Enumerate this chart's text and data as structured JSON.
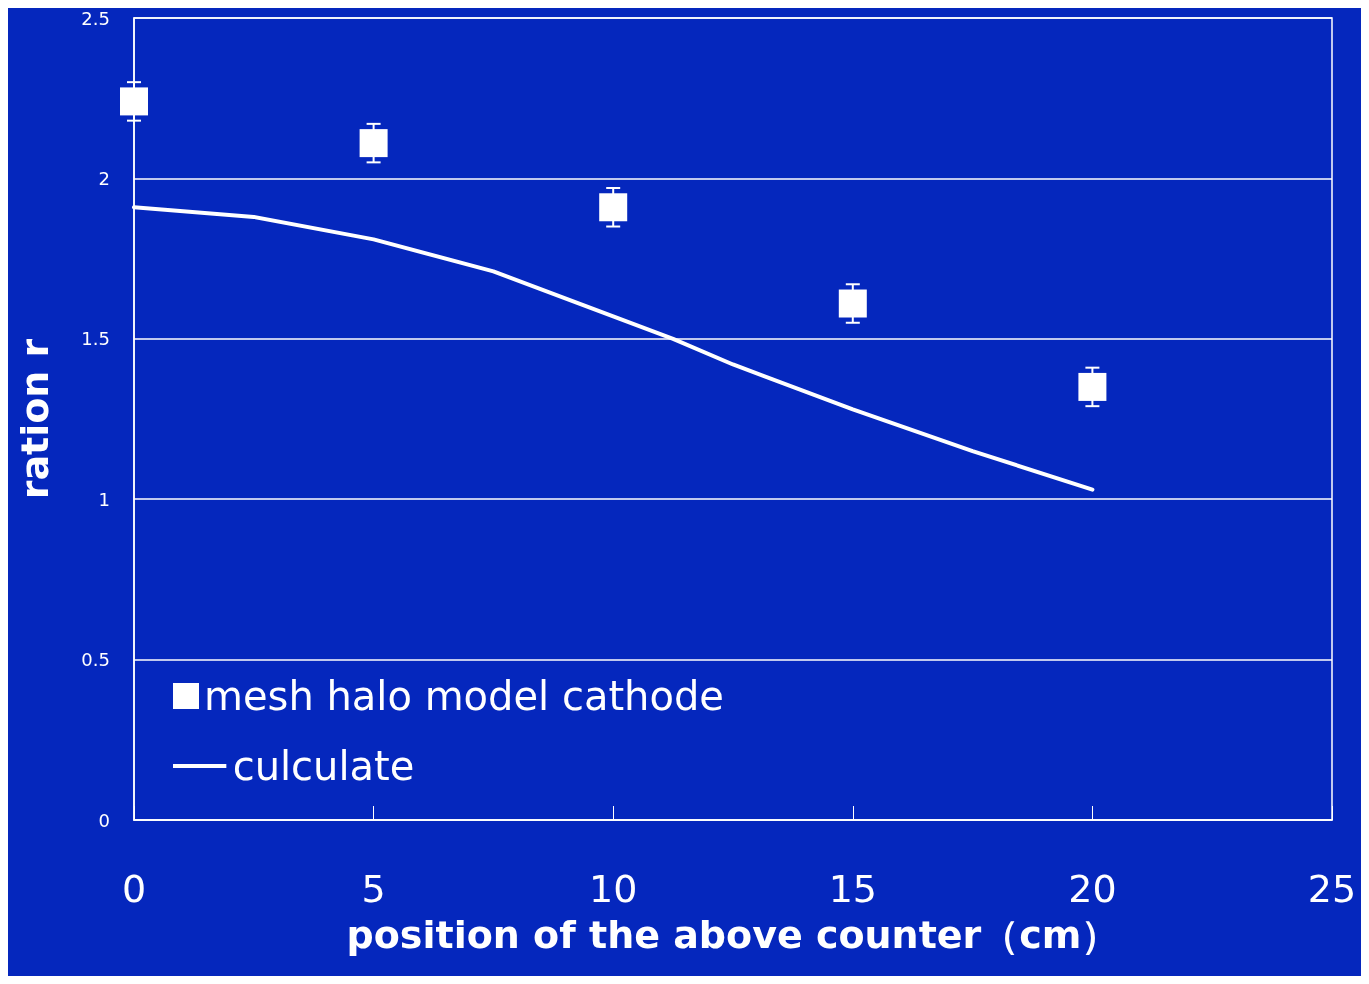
{
  "chart_data": {
    "type": "scatter",
    "xlabel": "position of the above counter（cm）",
    "ylabel": "ration r",
    "xlim": [
      0,
      25
    ],
    "xticks": [
      0,
      5,
      10,
      15,
      20,
      25
    ],
    "ylim": [
      0,
      2.5
    ],
    "yticks": [
      0,
      0.5,
      1,
      1.5,
      2,
      2.5
    ],
    "grid": "y",
    "legend": "bottom left",
    "series": [
      {
        "name": "mesh halo model cathode",
        "marker": "square",
        "color": "#ffffff",
        "x": [
          0,
          5,
          10,
          15,
          20
        ],
        "values": [
          2.24,
          2.11,
          1.91,
          1.61,
          1.35
        ],
        "errors": [
          0.06,
          0.06,
          0.06,
          0.06,
          0.06
        ]
      },
      {
        "name": "culculate",
        "type": "line",
        "marker": "none",
        "line_style": "solid",
        "color": "#ffffff",
        "x": [
          0,
          2.5,
          5,
          7.5,
          10,
          11.25,
          12.5,
          15,
          17.5,
          20
        ],
        "values": [
          1.91,
          1.88,
          1.81,
          1.71,
          1.57,
          1.5,
          1.42,
          1.28,
          1.15,
          1.03
        ]
      }
    ]
  }
}
